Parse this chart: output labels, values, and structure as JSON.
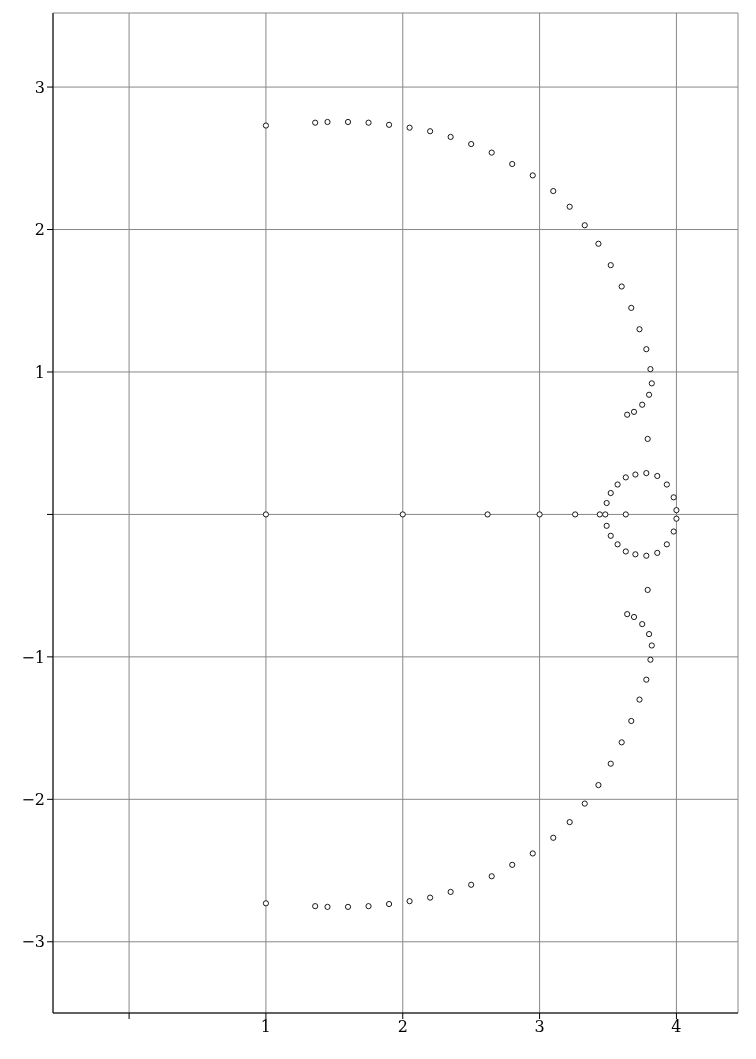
{
  "chart_data": {
    "type": "scatter",
    "marker": "circle",
    "grid": true,
    "xlim": [
      -0.556,
      4.45
    ],
    "ylim": [
      -3.5,
      3.52
    ],
    "xticks": [
      {
        "value": 0,
        "label": null
      },
      1,
      2,
      3,
      4
    ],
    "yticks": [
      {
        "value": -3,
        "label": "−3"
      },
      {
        "value": -2,
        "label": "−2"
      },
      {
        "value": -1,
        "label": "−1"
      },
      {
        "value": 0,
        "label": null
      },
      1,
      2,
      3
    ],
    "series": [
      {
        "color": "#000000",
        "x": [
          1,
          1,
          1,
          2,
          2.62,
          3,
          3.26,
          3.44,
          3.63,
          3.79,
          3.79,
          1.36,
          1.45,
          1.6,
          1.75,
          1.9,
          2.05,
          2.2,
          2.35,
          2.5,
          2.65,
          2.8,
          2.95,
          3.1,
          3.22,
          3.33,
          3.43,
          3.52,
          3.6,
          3.67,
          3.73,
          3.78,
          3.81,
          3.82,
          3.8,
          3.75,
          3.69,
          3.64,
          1.36,
          1.45,
          1.6,
          1.75,
          1.9,
          2.05,
          2.2,
          2.35,
          2.5,
          2.65,
          2.8,
          2.95,
          3.1,
          3.22,
          3.33,
          3.43,
          3.52,
          3.6,
          3.67,
          3.73,
          3.78,
          3.81,
          3.82,
          3.8,
          3.75,
          3.69,
          3.64,
          3.48,
          3.49,
          3.52,
          3.57,
          3.63,
          3.7,
          3.78,
          3.86,
          3.93,
          3.98,
          4.0,
          4.0,
          3.98,
          3.93,
          3.86,
          3.78,
          3.7,
          3.63,
          3.57,
          3.52,
          3.49
        ],
        "values": [
          2.73,
          -2.73,
          0,
          0,
          0,
          0,
          0,
          0,
          0,
          0.53,
          -0.53,
          2.75,
          2.755,
          2.755,
          2.75,
          2.735,
          2.715,
          2.69,
          2.65,
          2.6,
          2.54,
          2.46,
          2.38,
          2.27,
          2.16,
          2.03,
          1.9,
          1.75,
          1.6,
          1.45,
          1.3,
          1.16,
          1.02,
          0.92,
          0.84,
          0.77,
          0.72,
          0.7,
          -2.75,
          -2.755,
          -2.755,
          -2.75,
          -2.735,
          -2.715,
          -2.69,
          -2.65,
          -2.6,
          -2.54,
          -2.46,
          -2.38,
          -2.27,
          -2.16,
          -2.03,
          -1.9,
          -1.75,
          -1.6,
          -1.45,
          -1.3,
          -1.16,
          -1.02,
          -0.92,
          -0.84,
          -0.77,
          -0.72,
          -0.7,
          0,
          0.08,
          0.15,
          0.21,
          0.26,
          0.28,
          0.29,
          0.27,
          0.21,
          0.12,
          0.03,
          -0.03,
          -0.12,
          -0.21,
          -0.27,
          -0.29,
          -0.28,
          -0.26,
          -0.21,
          -0.15,
          -0.08
        ]
      }
    ]
  }
}
